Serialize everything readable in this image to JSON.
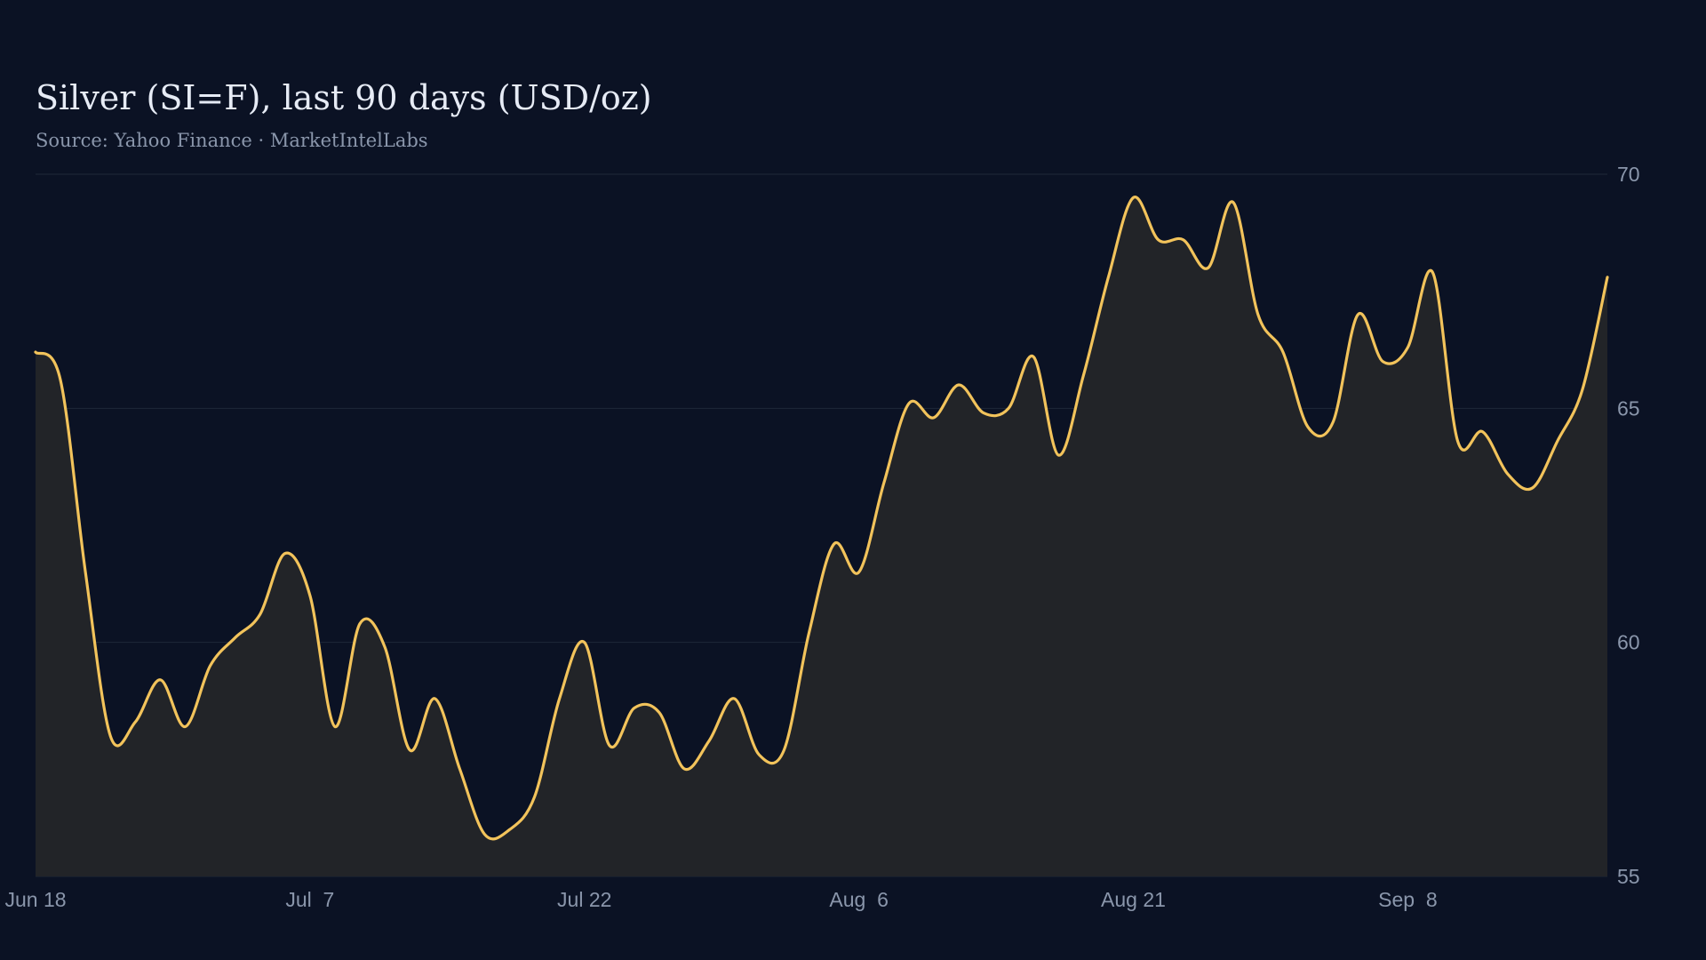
{
  "chart_data": {
    "type": "area",
    "title": "Silver (SI=F), last 90 days (USD/oz)",
    "subtitle": "Source: Yahoo Finance · MarketIntelLabs",
    "xlabel": "",
    "ylabel": "",
    "x_ticks": [
      "Jun 18",
      "Jul  7",
      "Jul 22",
      "Aug  6",
      "Aug 21",
      "Sep  8"
    ],
    "x_tick_day_index": [
      0,
      11,
      22,
      33,
      44,
      55
    ],
    "ylim": [
      55,
      70
    ],
    "y_ticks": [
      55,
      60,
      65,
      70
    ],
    "y_axis_side": "right",
    "grid": true,
    "line_color": "#f2c35b",
    "fill_color": "#222428",
    "background": "#0b1224",
    "series": [
      {
        "values": [
          66.2,
          65.6,
          61.5,
          58.0,
          58.3,
          59.2,
          58.2,
          59.5,
          60.1,
          60.6,
          61.9,
          61.0,
          58.2,
          60.4,
          59.9,
          57.7,
          58.8,
          57.3,
          55.9,
          56.0,
          56.7,
          58.8,
          60.0,
          57.8,
          58.6,
          58.5,
          57.3,
          57.9,
          58.8,
          57.6,
          57.7,
          60.2,
          62.1,
          61.5,
          63.4,
          65.1,
          64.8,
          65.5,
          64.9,
          65.0,
          66.1,
          64.0,
          65.7,
          67.8,
          69.5,
          68.6,
          68.6,
          68.0,
          69.4,
          67.0,
          66.2,
          64.6,
          64.7,
          67.0,
          66.0,
          66.3,
          67.9,
          64.3,
          64.5,
          63.6,
          63.3,
          64.3,
          65.4,
          67.8
        ]
      }
    ]
  }
}
